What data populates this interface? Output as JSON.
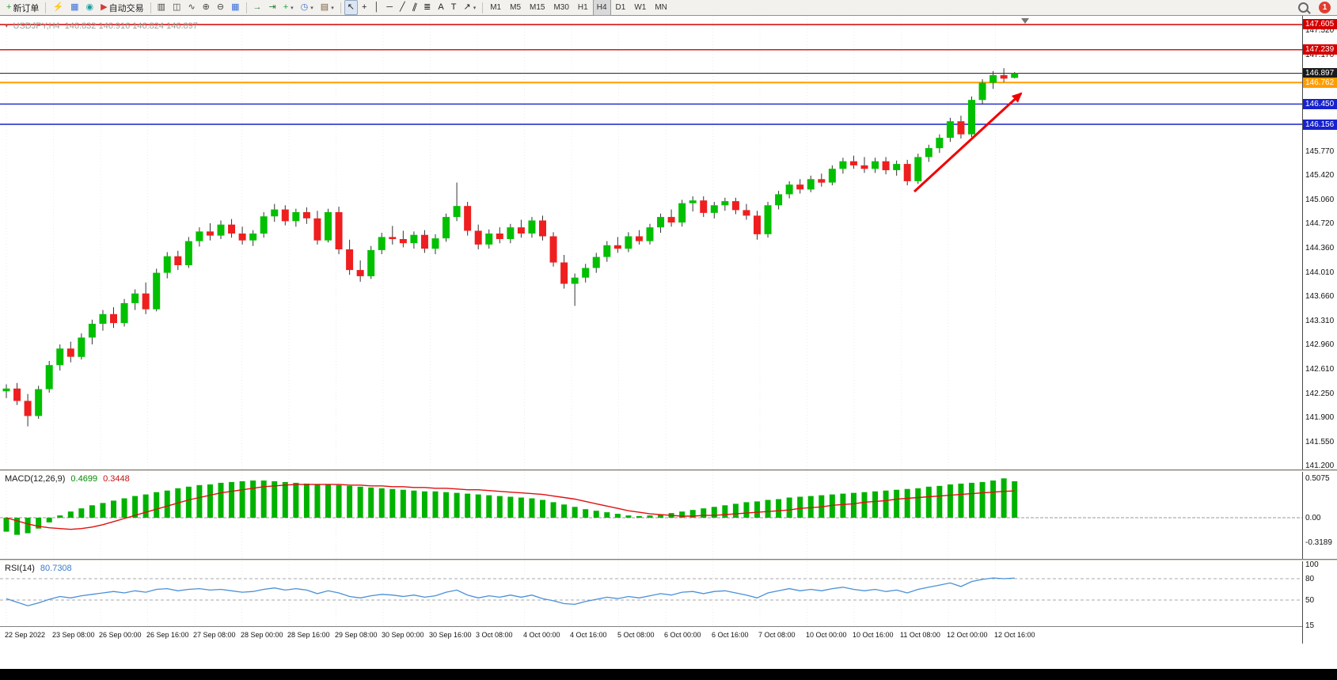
{
  "toolbar": {
    "groups": [
      [
        {
          "name": "new-order",
          "glyph": "+",
          "color": "#1f9e2c",
          "label": "新订单"
        }
      ],
      [
        {
          "name": "profiles",
          "glyph": "⚡",
          "color": "#e0a400"
        },
        {
          "name": "data-window",
          "glyph": "▦",
          "color": "#3a6fd8"
        },
        {
          "name": "navigator",
          "glyph": "◉",
          "color": "#1d9e9e"
        },
        {
          "name": "autotrading",
          "glyph": "▶",
          "color": "#d23b3b",
          "label": "自动交易"
        }
      ],
      [
        {
          "name": "bar-chart",
          "glyph": "▥",
          "color": "#444"
        },
        {
          "name": "candlestick-chart",
          "glyph": "◫",
          "color": "#444"
        },
        {
          "name": "line-chart",
          "glyph": "∿",
          "color": "#444"
        },
        {
          "name": "zoom-in",
          "glyph": "⊕",
          "color": "#444"
        },
        {
          "name": "zoom-out",
          "glyph": "⊖",
          "color": "#444"
        },
        {
          "name": "tile-windows",
          "glyph": "▦",
          "color": "#3a6fd8"
        }
      ],
      [
        {
          "name": "auto-scroll",
          "glyph": "→",
          "color": "#2e7d32"
        },
        {
          "name": "chart-shift",
          "glyph": "⇥",
          "color": "#2e7d32"
        },
        {
          "name": "indicators",
          "glyph": "+",
          "color": "#1f9e2c",
          "dropdown": true
        },
        {
          "name": "periods",
          "glyph": "◷",
          "color": "#3a6fd8",
          "dropdown": true
        },
        {
          "name": "templates",
          "glyph": "▤",
          "color": "#7a5c3e",
          "dropdown": true
        }
      ],
      [
        {
          "name": "cursor",
          "glyph": "↖",
          "color": "#222",
          "active": true
        },
        {
          "name": "crosshair",
          "glyph": "+",
          "color": "#222"
        },
        {
          "name": "vertical-line",
          "glyph": "│",
          "color": "#222"
        },
        {
          "name": "horizontal-line",
          "glyph": "─",
          "color": "#222"
        },
        {
          "name": "trendline",
          "glyph": "╱",
          "color": "#222"
        },
        {
          "name": "equidistant-channel",
          "glyph": "∥",
          "color": "#222",
          "rotate": 20
        },
        {
          "name": "fibonacci",
          "glyph": "≣",
          "color": "#222"
        },
        {
          "name": "text",
          "glyph": "A",
          "color": "#222"
        },
        {
          "name": "text-label",
          "glyph": "T",
          "color": "#222"
        },
        {
          "name": "arrows",
          "glyph": "↗",
          "color": "#222",
          "dropdown": true
        }
      ]
    ],
    "timeframes": [
      "M1",
      "M5",
      "M15",
      "M30",
      "H1",
      "H4",
      "D1",
      "W1",
      "MN"
    ],
    "active_timeframe": "H4",
    "notification_count": "1"
  },
  "chart": {
    "symbol_period": "USDJPY,H4",
    "ohlc": "146.832 146.916 146.824 146.897",
    "current_price": "146.897",
    "y_axis_ticks": [
      "147.520",
      "147.170",
      "146.820",
      "146.470",
      "146.120",
      "145.770",
      "145.420",
      "145.060",
      "144.720",
      "144.360",
      "144.010",
      "143.660",
      "143.310",
      "142.960",
      "142.610",
      "142.250",
      "141.900",
      "141.550",
      "141.200"
    ],
    "levels": [
      {
        "price": 147.605,
        "label": "147.605",
        "color": "#d40000",
        "width": 1.4
      },
      {
        "price": 147.239,
        "label": "147.239",
        "color": "#d40000",
        "width": 1.4
      },
      {
        "price": 146.897,
        "label": "146.897",
        "color": "#1a1a1a",
        "width": 1,
        "is_current": true
      },
      {
        "price": 146.762,
        "label": "146.762",
        "color": "#ff9d00",
        "width": 2
      },
      {
        "price": 146.45,
        "label": "146.450",
        "color": "#1722cc",
        "width": 1.4
      },
      {
        "price": 146.156,
        "label": "146.156",
        "color": "#1722cc",
        "width": 1.4
      }
    ],
    "colors": {
      "bull": "#00c000",
      "bear": "#ef1f1f",
      "wick": "#333333",
      "arrow": "#f00000",
      "macd_hist": "#00b200",
      "macd_signal": "#e01010",
      "rsi_line": "#4a90d9"
    }
  },
  "macd": {
    "label": "MACD(12,26,9)",
    "value_main": "0.4699",
    "value_signal": "0.3448",
    "scale": [
      "0.5075",
      "0.00",
      "-0.3189"
    ]
  },
  "rsi": {
    "label": "RSI(14)",
    "value": "80.7308",
    "scale": [
      "100",
      "80",
      "50",
      "15"
    ],
    "levels": [
      80,
      50
    ]
  },
  "chart_data": {
    "type": "candlestick",
    "symbol": "USDJPY",
    "timeframe": "H4",
    "title": "USDJPY,H4",
    "price_range": [
      141.14,
      147.73
    ],
    "x_labels": [
      "22 Sep 2022",
      "23 Sep 08:00",
      "26 Sep 00:00",
      "26 Sep 16:00",
      "27 Sep 08:00",
      "28 Sep 00:00",
      "28 Sep 16:00",
      "29 Sep 08:00",
      "30 Sep 00:00",
      "30 Sep 16:00",
      "3 Oct 08:00",
      "4 Oct 00:00",
      "4 Oct 16:00",
      "5 Oct 08:00",
      "6 Oct 00:00",
      "6 Oct 16:00",
      "7 Oct 08:00",
      "10 Oct 00:00",
      "10 Oct 16:00",
      "11 Oct 08:00",
      "12 Oct 00:00",
      "12 Oct 16:00"
    ],
    "candles": [
      [
        142.28,
        142.38,
        142.18,
        142.32
      ],
      [
        142.32,
        142.4,
        142.08,
        142.14
      ],
      [
        142.14,
        142.24,
        141.77,
        141.92
      ],
      [
        141.92,
        142.36,
        141.88,
        142.31
      ],
      [
        142.31,
        142.72,
        142.26,
        142.66
      ],
      [
        142.66,
        142.96,
        142.58,
        142.9
      ],
      [
        142.9,
        143.0,
        142.7,
        142.78
      ],
      [
        142.78,
        143.12,
        142.74,
        143.06
      ],
      [
        143.06,
        143.32,
        142.96,
        143.26
      ],
      [
        143.26,
        143.46,
        143.16,
        143.4
      ],
      [
        143.4,
        143.5,
        143.2,
        143.27
      ],
      [
        143.27,
        143.62,
        143.22,
        143.56
      ],
      [
        143.56,
        143.76,
        143.46,
        143.7
      ],
      [
        143.7,
        143.86,
        143.4,
        143.47
      ],
      [
        143.47,
        144.06,
        143.44,
        144.0
      ],
      [
        144.0,
        144.3,
        143.92,
        144.24
      ],
      [
        144.24,
        144.32,
        144.04,
        144.11
      ],
      [
        144.11,
        144.52,
        144.07,
        144.46
      ],
      [
        144.46,
        144.66,
        144.38,
        144.6
      ],
      [
        144.6,
        144.72,
        144.47,
        144.54
      ],
      [
        144.54,
        144.76,
        144.49,
        144.7
      ],
      [
        144.7,
        144.78,
        144.51,
        144.57
      ],
      [
        144.57,
        144.67,
        144.41,
        144.47
      ],
      [
        144.47,
        144.62,
        144.39,
        144.57
      ],
      [
        144.57,
        144.88,
        144.51,
        144.82
      ],
      [
        144.82,
        145.0,
        144.74,
        144.92
      ],
      [
        144.92,
        144.98,
        144.69,
        144.75
      ],
      [
        144.75,
        144.93,
        144.67,
        144.88
      ],
      [
        144.88,
        144.95,
        144.71,
        144.79
      ],
      [
        144.79,
        144.9,
        144.41,
        144.47
      ],
      [
        144.47,
        144.93,
        144.44,
        144.88
      ],
      [
        144.88,
        144.96,
        144.27,
        144.34
      ],
      [
        144.34,
        144.48,
        143.97,
        144.04
      ],
      [
        144.04,
        144.18,
        143.87,
        143.95
      ],
      [
        143.95,
        144.39,
        143.91,
        144.33
      ],
      [
        144.33,
        144.58,
        144.27,
        144.52
      ],
      [
        144.52,
        144.68,
        144.41,
        144.49
      ],
      [
        144.49,
        144.61,
        144.37,
        144.43
      ],
      [
        144.43,
        144.6,
        144.35,
        144.55
      ],
      [
        144.55,
        144.62,
        144.29,
        144.35
      ],
      [
        144.35,
        144.56,
        144.27,
        144.5
      ],
      [
        144.5,
        144.86,
        144.45,
        144.81
      ],
      [
        144.81,
        145.31,
        144.75,
        144.97
      ],
      [
        144.97,
        145.03,
        144.54,
        144.61
      ],
      [
        144.61,
        144.7,
        144.34,
        144.41
      ],
      [
        144.41,
        144.63,
        144.35,
        144.57
      ],
      [
        144.57,
        144.66,
        144.43,
        144.49
      ],
      [
        144.49,
        144.71,
        144.43,
        144.66
      ],
      [
        144.66,
        144.77,
        144.51,
        144.57
      ],
      [
        144.57,
        144.81,
        144.51,
        144.76
      ],
      [
        144.76,
        144.83,
        144.47,
        144.53
      ],
      [
        144.53,
        144.59,
        144.09,
        144.15
      ],
      [
        144.15,
        144.26,
        143.77,
        143.84
      ],
      [
        143.84,
        143.99,
        143.52,
        143.93
      ],
      [
        143.93,
        144.13,
        143.86,
        144.07
      ],
      [
        144.07,
        144.29,
        144.0,
        144.23
      ],
      [
        144.23,
        144.46,
        144.16,
        144.4
      ],
      [
        144.4,
        144.52,
        144.29,
        144.35
      ],
      [
        144.35,
        144.59,
        144.3,
        144.53
      ],
      [
        144.53,
        144.62,
        144.41,
        144.46
      ],
      [
        144.46,
        144.71,
        144.41,
        144.66
      ],
      [
        144.66,
        144.86,
        144.58,
        144.81
      ],
      [
        144.81,
        144.92,
        144.67,
        144.73
      ],
      [
        144.73,
        145.06,
        144.67,
        145.01
      ],
      [
        145.01,
        145.11,
        144.89,
        145.05
      ],
      [
        145.05,
        145.11,
        144.81,
        144.87
      ],
      [
        144.87,
        145.03,
        144.79,
        144.98
      ],
      [
        144.98,
        145.09,
        144.9,
        145.04
      ],
      [
        145.04,
        145.09,
        144.85,
        144.91
      ],
      [
        144.91,
        145.0,
        144.77,
        144.83
      ],
      [
        144.83,
        144.9,
        144.48,
        144.56
      ],
      [
        144.56,
        145.03,
        144.51,
        144.98
      ],
      [
        144.98,
        145.19,
        144.92,
        145.14
      ],
      [
        145.14,
        145.33,
        145.08,
        145.28
      ],
      [
        145.28,
        145.36,
        145.15,
        145.21
      ],
      [
        145.21,
        145.41,
        145.17,
        145.36
      ],
      [
        145.36,
        145.44,
        145.25,
        145.31
      ],
      [
        145.31,
        145.56,
        145.27,
        145.51
      ],
      [
        145.51,
        145.67,
        145.44,
        145.62
      ],
      [
        145.62,
        145.7,
        145.51,
        145.56
      ],
      [
        145.56,
        145.68,
        145.45,
        145.51
      ],
      [
        145.51,
        145.67,
        145.45,
        145.62
      ],
      [
        145.62,
        145.68,
        145.43,
        145.49
      ],
      [
        145.49,
        145.63,
        145.41,
        145.58
      ],
      [
        145.58,
        145.64,
        145.27,
        145.33
      ],
      [
        145.33,
        145.73,
        145.29,
        145.68
      ],
      [
        145.68,
        145.86,
        145.61,
        145.81
      ],
      [
        145.81,
        146.01,
        145.74,
        145.96
      ],
      [
        145.96,
        146.25,
        145.9,
        146.2
      ],
      [
        146.2,
        146.28,
        145.95,
        146.01
      ],
      [
        146.01,
        146.56,
        145.97,
        146.51
      ],
      [
        146.51,
        146.81,
        146.45,
        146.76
      ],
      [
        146.76,
        146.93,
        146.67,
        146.87
      ],
      [
        146.87,
        146.97,
        146.77,
        146.82
      ],
      [
        146.832,
        146.916,
        146.824,
        146.897
      ]
    ],
    "series": [
      {
        "name": "MACD histogram",
        "type": "bar",
        "color": "#00b200",
        "values": [
          -0.18,
          -0.22,
          -0.2,
          -0.14,
          -0.06,
          0.03,
          0.08,
          0.12,
          0.16,
          0.19,
          0.22,
          0.25,
          0.28,
          0.3,
          0.33,
          0.35,
          0.38,
          0.4,
          0.42,
          0.43,
          0.45,
          0.46,
          0.47,
          0.48,
          0.48,
          0.47,
          0.46,
          0.45,
          0.44,
          0.43,
          0.43,
          0.42,
          0.41,
          0.4,
          0.39,
          0.38,
          0.37,
          0.36,
          0.35,
          0.34,
          0.34,
          0.33,
          0.32,
          0.31,
          0.3,
          0.29,
          0.28,
          0.27,
          0.26,
          0.25,
          0.23,
          0.2,
          0.17,
          0.14,
          0.11,
          0.09,
          0.07,
          0.05,
          0.03,
          0.02,
          0.03,
          0.04,
          0.06,
          0.08,
          0.1,
          0.12,
          0.14,
          0.16,
          0.18,
          0.2,
          0.21,
          0.23,
          0.24,
          0.26,
          0.27,
          0.28,
          0.29,
          0.3,
          0.31,
          0.32,
          0.33,
          0.34,
          0.35,
          0.36,
          0.37,
          0.38,
          0.4,
          0.41,
          0.43,
          0.44,
          0.45,
          0.46,
          0.48,
          0.5075,
          0.4699
        ]
      },
      {
        "name": "MACD signal",
        "type": "line",
        "color": "#e01010",
        "values": [
          0.0,
          -0.04,
          -0.08,
          -0.11,
          -0.13,
          -0.14,
          -0.15,
          -0.14,
          -0.12,
          -0.09,
          -0.05,
          -0.01,
          0.03,
          0.07,
          0.11,
          0.15,
          0.19,
          0.23,
          0.26,
          0.29,
          0.32,
          0.34,
          0.36,
          0.38,
          0.4,
          0.41,
          0.42,
          0.43,
          0.43,
          0.43,
          0.43,
          0.43,
          0.42,
          0.42,
          0.41,
          0.41,
          0.4,
          0.4,
          0.39,
          0.39,
          0.38,
          0.38,
          0.37,
          0.36,
          0.36,
          0.35,
          0.34,
          0.33,
          0.32,
          0.31,
          0.3,
          0.28,
          0.26,
          0.24,
          0.21,
          0.18,
          0.15,
          0.12,
          0.09,
          0.07,
          0.05,
          0.04,
          0.03,
          0.02,
          0.02,
          0.03,
          0.03,
          0.04,
          0.05,
          0.06,
          0.07,
          0.08,
          0.09,
          0.1,
          0.12,
          0.13,
          0.14,
          0.16,
          0.17,
          0.18,
          0.2,
          0.21,
          0.22,
          0.24,
          0.25,
          0.26,
          0.27,
          0.28,
          0.29,
          0.3,
          0.31,
          0.32,
          0.33,
          0.34,
          0.3448
        ]
      },
      {
        "name": "RSI(14)",
        "type": "line",
        "color": "#4a90d9",
        "values": [
          52,
          47,
          42,
          46,
          51,
          55,
          53,
          56,
          58,
          60,
          62,
          60,
          63,
          61,
          65,
          66,
          63,
          65,
          66,
          64,
          65,
          63,
          61,
          62,
          65,
          67,
          64,
          66,
          64,
          59,
          63,
          60,
          55,
          53,
          56,
          58,
          57,
          55,
          57,
          54,
          56,
          61,
          64,
          57,
          53,
          56,
          54,
          57,
          54,
          57,
          52,
          49,
          45,
          44,
          48,
          51,
          54,
          52,
          55,
          53,
          56,
          59,
          57,
          61,
          62,
          59,
          62,
          63,
          60,
          57,
          53,
          60,
          63,
          66,
          63,
          65,
          63,
          66,
          68,
          65,
          63,
          65,
          62,
          64,
          60,
          65,
          68,
          71,
          74,
          69,
          76,
          79,
          81,
          80,
          80.73
        ]
      }
    ]
  }
}
